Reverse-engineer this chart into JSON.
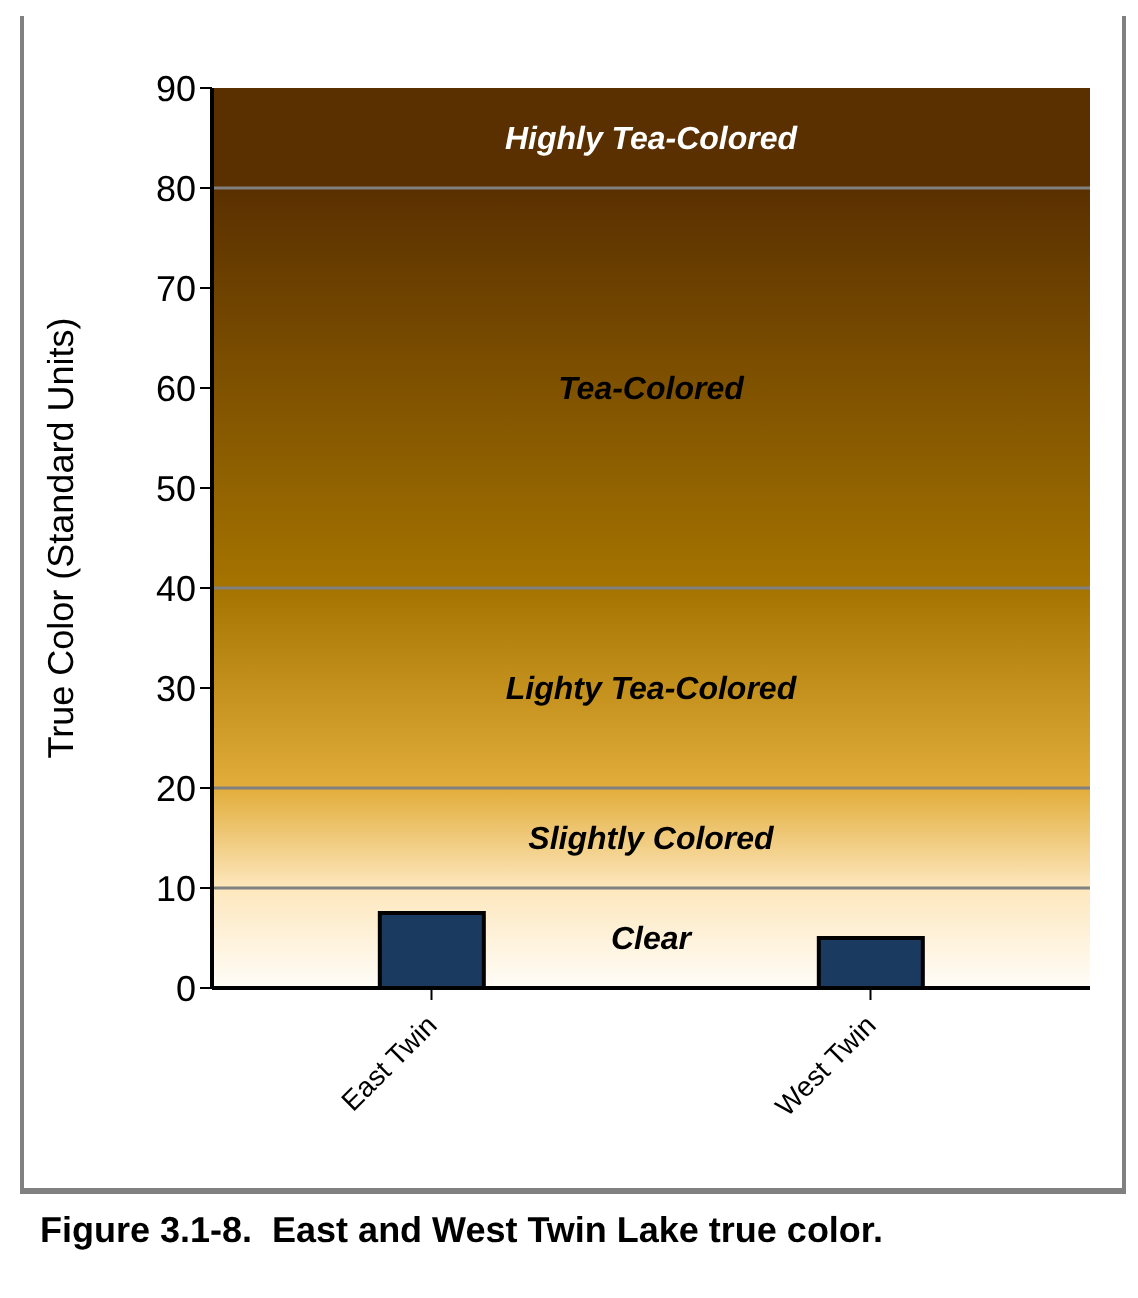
{
  "chart_data": {
    "type": "bar",
    "title": "Figure 3.1-8.  East and West Twin Lake true color.",
    "ylabel": "True Color (Standard Units)",
    "categories": [
      "East Twin",
      "West Twin"
    ],
    "values": [
      7.5,
      5
    ],
    "color": "#1b3a5f",
    "ylim": [
      0,
      90
    ],
    "yticks": [
      0,
      10,
      20,
      30,
      40,
      50,
      60,
      70,
      80,
      90
    ],
    "grid": false,
    "legend": false,
    "bands": [
      {
        "axis": "y",
        "from": 0,
        "to": 10,
        "label": "Clear",
        "color": "#fffdf8"
      },
      {
        "axis": "y",
        "from": 10,
        "to": 20,
        "label": "Slightly Colored",
        "color": "#fde7bd"
      },
      {
        "axis": "y",
        "from": 20,
        "to": 40,
        "label": "Lighty Tea-Colored",
        "color": "#e2ad3a"
      },
      {
        "axis": "y",
        "from": 40,
        "to": 80,
        "label": "Tea-Colored",
        "color": "#a57400"
      },
      {
        "axis": "y",
        "from": 80,
        "to": 90,
        "label": "Highly Tea-Colored",
        "color": "#5a3000"
      }
    ],
    "ref_lines": [
      {
        "axis": "y",
        "value": 10,
        "color": "#808080"
      },
      {
        "axis": "y",
        "value": 20,
        "color": "#808080"
      },
      {
        "axis": "y",
        "value": 40,
        "color": "#808080"
      },
      {
        "axis": "y",
        "value": 80,
        "color": "#808080"
      }
    ]
  }
}
